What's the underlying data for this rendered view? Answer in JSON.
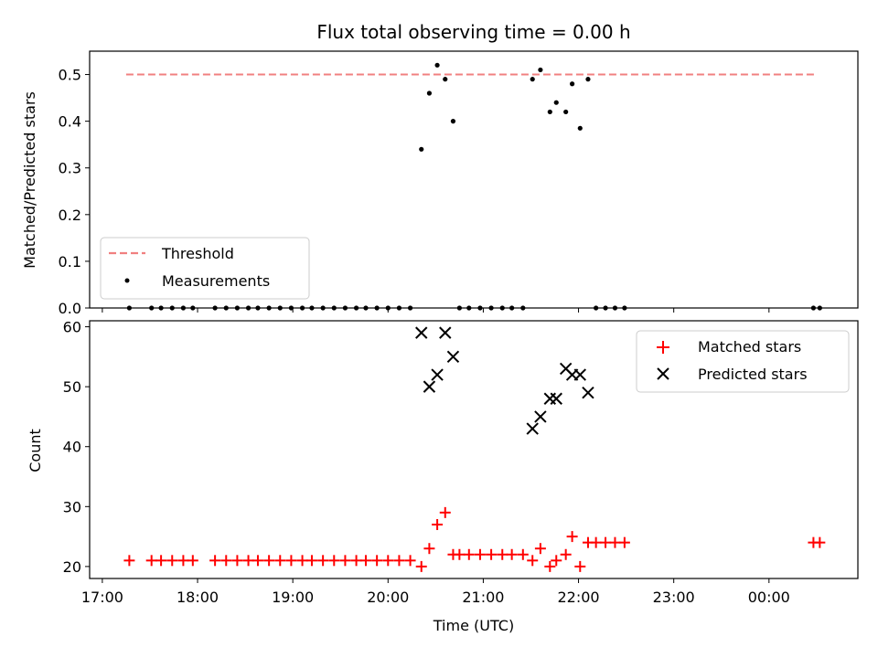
{
  "title": "Flux total observing time = 0.00 h",
  "x_ticks": [
    {
      "label": "17:00",
      "t": 17.0
    },
    {
      "label": "18:00",
      "t": 18.0
    },
    {
      "label": "19:00",
      "t": 19.0
    },
    {
      "label": "20:00",
      "t": 20.0
    },
    {
      "label": "21:00",
      "t": 21.0
    },
    {
      "label": "22:00",
      "t": 22.0
    },
    {
      "label": "23:00",
      "t": 23.0
    },
    {
      "label": "00:00",
      "t": 24.0
    }
  ],
  "x_label": "Time (UTC)",
  "chart_data": [
    {
      "type": "scatter",
      "ylabel": "Matched/Predicted stars",
      "xlim": [
        "16:52",
        "00:56"
      ],
      "ylim": [
        0,
        0.55
      ],
      "yticks": [
        "0.0",
        "0.1",
        "0.2",
        "0.3",
        "0.4",
        "0.5"
      ],
      "legend_position": "lower-left",
      "threshold": {
        "name": "Threshold",
        "value": 0.5,
        "x_range": [
          "17:15",
          "00:30"
        ],
        "color": "#f08080"
      },
      "series": [
        {
          "name": "Measurements",
          "color": "#000000",
          "points": [
            {
              "x": "17:17",
              "y": 0
            },
            {
              "x": "17:31",
              "y": 0
            },
            {
              "x": "17:37",
              "y": 0
            },
            {
              "x": "17:44",
              "y": 0
            },
            {
              "x": "17:51",
              "y": 0
            },
            {
              "x": "17:57",
              "y": 0
            },
            {
              "x": "18:11",
              "y": 0
            },
            {
              "x": "18:18",
              "y": 0
            },
            {
              "x": "18:25",
              "y": 0
            },
            {
              "x": "18:32",
              "y": 0
            },
            {
              "x": "18:38",
              "y": 0
            },
            {
              "x": "18:45",
              "y": 0
            },
            {
              "x": "18:52",
              "y": 0
            },
            {
              "x": "18:59",
              "y": 0
            },
            {
              "x": "19:06",
              "y": 0
            },
            {
              "x": "19:12",
              "y": 0
            },
            {
              "x": "19:19",
              "y": 0
            },
            {
              "x": "19:26",
              "y": 0
            },
            {
              "x": "19:33",
              "y": 0
            },
            {
              "x": "19:40",
              "y": 0
            },
            {
              "x": "19:46",
              "y": 0
            },
            {
              "x": "19:53",
              "y": 0
            },
            {
              "x": "20:00",
              "y": 0
            },
            {
              "x": "20:07",
              "y": 0
            },
            {
              "x": "20:14",
              "y": 0
            },
            {
              "x": "20:21",
              "y": 0.34
            },
            {
              "x": "20:26",
              "y": 0.46
            },
            {
              "x": "20:31",
              "y": 0.52
            },
            {
              "x": "20:36",
              "y": 0.49
            },
            {
              "x": "20:41",
              "y": 0.4
            },
            {
              "x": "20:45",
              "y": 0
            },
            {
              "x": "20:51",
              "y": 0
            },
            {
              "x": "20:58",
              "y": 0
            },
            {
              "x": "21:05",
              "y": 0
            },
            {
              "x": "21:12",
              "y": 0
            },
            {
              "x": "21:18",
              "y": 0
            },
            {
              "x": "21:25",
              "y": 0
            },
            {
              "x": "21:31",
              "y": 0.49
            },
            {
              "x": "21:36",
              "y": 0.51
            },
            {
              "x": "21:42",
              "y": 0.42
            },
            {
              "x": "21:46",
              "y": 0.44
            },
            {
              "x": "21:52",
              "y": 0.42
            },
            {
              "x": "21:56",
              "y": 0.48
            },
            {
              "x": "22:01",
              "y": 0.385
            },
            {
              "x": "22:06",
              "y": 0.49
            },
            {
              "x": "22:11",
              "y": 0
            },
            {
              "x": "22:17",
              "y": 0
            },
            {
              "x": "22:23",
              "y": 0
            },
            {
              "x": "22:29",
              "y": 0
            },
            {
              "x": "00:28",
              "y": 0
            },
            {
              "x": "00:32",
              "y": 0
            }
          ]
        }
      ]
    },
    {
      "type": "scatter",
      "ylabel": "Count",
      "xlim": [
        "16:52",
        "00:56"
      ],
      "ylim": [
        18,
        61
      ],
      "yticks": [
        "20",
        "30",
        "40",
        "50",
        "60"
      ],
      "legend_position": "upper-right",
      "series": [
        {
          "name": "Matched stars",
          "color": "#ff0000",
          "marker": "plus",
          "points": [
            {
              "x": "17:17",
              "y": 21
            },
            {
              "x": "17:31",
              "y": 21
            },
            {
              "x": "17:37",
              "y": 21
            },
            {
              "x": "17:44",
              "y": 21
            },
            {
              "x": "17:51",
              "y": 21
            },
            {
              "x": "17:57",
              "y": 21
            },
            {
              "x": "18:11",
              "y": 21
            },
            {
              "x": "18:18",
              "y": 21
            },
            {
              "x": "18:25",
              "y": 21
            },
            {
              "x": "18:32",
              "y": 21
            },
            {
              "x": "18:38",
              "y": 21
            },
            {
              "x": "18:45",
              "y": 21
            },
            {
              "x": "18:52",
              "y": 21
            },
            {
              "x": "18:59",
              "y": 21
            },
            {
              "x": "19:06",
              "y": 21
            },
            {
              "x": "19:12",
              "y": 21
            },
            {
              "x": "19:19",
              "y": 21
            },
            {
              "x": "19:26",
              "y": 21
            },
            {
              "x": "19:33",
              "y": 21
            },
            {
              "x": "19:40",
              "y": 21
            },
            {
              "x": "19:46",
              "y": 21
            },
            {
              "x": "19:53",
              "y": 21
            },
            {
              "x": "20:00",
              "y": 21
            },
            {
              "x": "20:07",
              "y": 21
            },
            {
              "x": "20:14",
              "y": 21
            },
            {
              "x": "20:21",
              "y": 20
            },
            {
              "x": "20:26",
              "y": 23
            },
            {
              "x": "20:31",
              "y": 27
            },
            {
              "x": "20:36",
              "y": 29
            },
            {
              "x": "20:41",
              "y": 22
            },
            {
              "x": "20:45",
              "y": 22
            },
            {
              "x": "20:51",
              "y": 22
            },
            {
              "x": "20:58",
              "y": 22
            },
            {
              "x": "21:05",
              "y": 22
            },
            {
              "x": "21:12",
              "y": 22
            },
            {
              "x": "21:18",
              "y": 22
            },
            {
              "x": "21:25",
              "y": 22
            },
            {
              "x": "21:31",
              "y": 21
            },
            {
              "x": "21:36",
              "y": 23
            },
            {
              "x": "21:42",
              "y": 20
            },
            {
              "x": "21:46",
              "y": 21
            },
            {
              "x": "21:52",
              "y": 22
            },
            {
              "x": "21:56",
              "y": 25
            },
            {
              "x": "22:01",
              "y": 20
            },
            {
              "x": "22:06",
              "y": 24
            },
            {
              "x": "22:11",
              "y": 24
            },
            {
              "x": "22:17",
              "y": 24
            },
            {
              "x": "22:23",
              "y": 24
            },
            {
              "x": "22:29",
              "y": 24
            },
            {
              "x": "00:28",
              "y": 24
            },
            {
              "x": "00:32",
              "y": 24
            }
          ]
        },
        {
          "name": "Predicted stars",
          "color": "#000000",
          "marker": "x",
          "points": [
            {
              "x": "20:21",
              "y": 59
            },
            {
              "x": "20:26",
              "y": 50
            },
            {
              "x": "20:31",
              "y": 52
            },
            {
              "x": "20:36",
              "y": 59
            },
            {
              "x": "20:41",
              "y": 55
            },
            {
              "x": "21:31",
              "y": 43
            },
            {
              "x": "21:36",
              "y": 45
            },
            {
              "x": "21:42",
              "y": 48
            },
            {
              "x": "21:46",
              "y": 48
            },
            {
              "x": "21:52",
              "y": 53
            },
            {
              "x": "21:56",
              "y": 52
            },
            {
              "x": "22:01",
              "y": 52
            },
            {
              "x": "22:06",
              "y": 49
            }
          ]
        }
      ]
    }
  ]
}
